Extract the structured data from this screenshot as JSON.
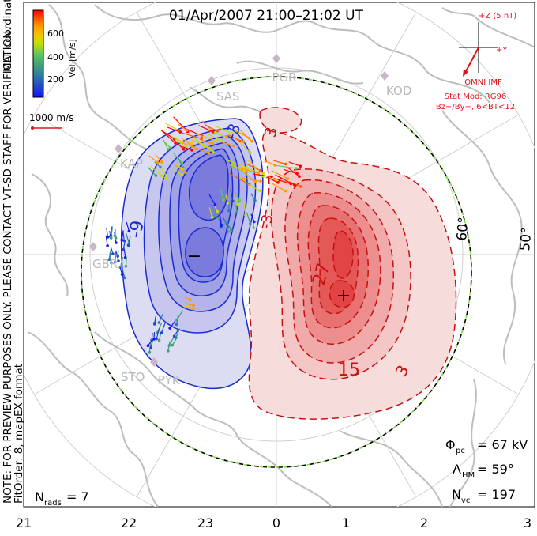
{
  "title": "01/Apr/2007 21:00–21:02 UT",
  "vertical_notes": {
    "preview": "NOTE: FOR PREVIEW PURPOSES ONLY. PLEASE CONTACT VT-SD STAFF FOR VERIFICATION.",
    "format": "FitOrder: 8, mapEX format",
    "coords": "MLT coordinates"
  },
  "colorbar": {
    "label": "Vel [m/s]",
    "ticks": [
      "600",
      "400",
      "200"
    ],
    "colors": [
      "#ff0000",
      "#ff5a00",
      "#ff9800",
      "#f4c400",
      "#c7e000",
      "#62c85a",
      "#3ea07a",
      "#2f79a6",
      "#2147c9",
      "#1414ff"
    ]
  },
  "scale_vector": {
    "label": "1000 m/s"
  },
  "imf": {
    "z_label": "+Z (5 nT)",
    "y_label": "+Y",
    "name": "OMNI IMF",
    "model_line1": "Stat Mod: RG96",
    "model_line2": "Bz−/By−, 6<BT<12"
  },
  "stations": [
    "PGR",
    "SAS",
    "KOD",
    "KAP",
    "GBR",
    "STO",
    "PYK"
  ],
  "latitude_labels": [
    "60°",
    "50°"
  ],
  "contour_labels": [
    "-9",
    "-3",
    "3",
    "27",
    "15",
    "3",
    "-3"
  ],
  "extrema": {
    "min_symbol": "−",
    "max_symbol": "+"
  },
  "stats": {
    "phi_label": "Φ",
    "phi_sub": "pc",
    "phi_value": "= 67 kV",
    "lambda_label": "Λ",
    "lambda_sub": "HM",
    "lambda_value": "= 59°",
    "nvc_label": "N",
    "nvc_sub": "vc",
    "nvc_value": "= 197",
    "nrads_label": "N",
    "nrads_sub": "rads",
    "nrads_value": "= 7"
  },
  "mlt_axis": [
    "21",
    "22",
    "23",
    "0",
    "1",
    "2",
    "3"
  ]
}
